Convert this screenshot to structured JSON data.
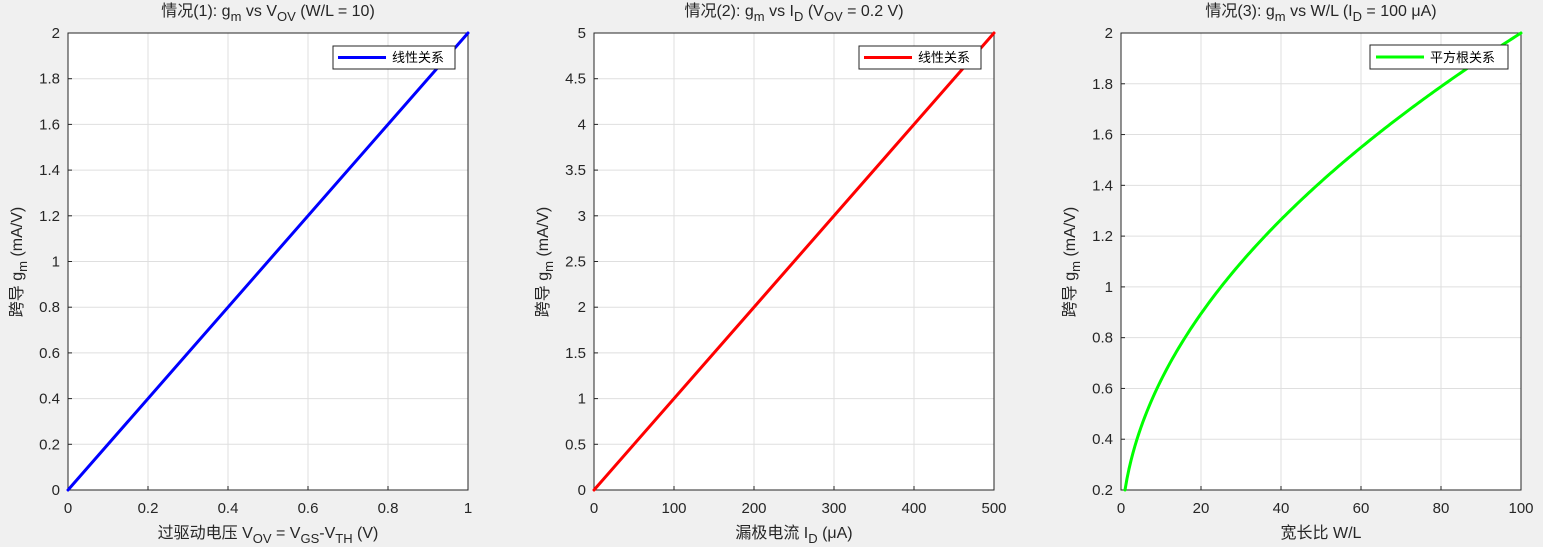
{
  "chart_data": [
    {
      "type": "line",
      "title": "情况(1): g_m vs V_OV (W/L = 10)",
      "xlabel": "过驱动电压 V_OV = V_GS-V_TH (V)",
      "ylabel": "跨导 g_m (mA/V)",
      "xlim": [
        0,
        1
      ],
      "ylim": [
        0,
        2
      ],
      "xticks": [
        0,
        0.2,
        0.4,
        0.6,
        0.8,
        1
      ],
      "yticks": [
        0,
        0.2,
        0.4,
        0.6,
        0.8,
        1,
        1.2,
        1.4,
        1.6,
        1.8,
        2
      ],
      "grid": true,
      "legend_position": "top-right",
      "series": [
        {
          "name": "线性关系",
          "color": "#0000ff",
          "x": [
            0,
            1
          ],
          "y": [
            0,
            2
          ]
        }
      ]
    },
    {
      "type": "line",
      "title": "情况(2): g_m vs I_D (V_OV = 0.2 V)",
      "xlabel": "漏极电流 I_D (μA)",
      "ylabel": "跨导 g_m (mA/V)",
      "xlim": [
        0,
        500
      ],
      "ylim": [
        0,
        5
      ],
      "xticks": [
        0,
        100,
        200,
        300,
        400,
        500
      ],
      "yticks": [
        0,
        0.5,
        1,
        1.5,
        2,
        2.5,
        3,
        3.5,
        4,
        4.5,
        5
      ],
      "grid": true,
      "legend_position": "top-right",
      "series": [
        {
          "name": "线性关系",
          "color": "#ff0000",
          "x": [
            0,
            500
          ],
          "y": [
            0,
            5
          ]
        }
      ]
    },
    {
      "type": "line",
      "title": "情况(3): g_m vs W/L (I_D = 100 μA)",
      "xlabel": "宽长比 W/L",
      "ylabel": "跨导 g_m (mA/V)",
      "xlim": [
        0,
        100
      ],
      "ylim": [
        0.2,
        2
      ],
      "xticks": [
        0,
        20,
        40,
        60,
        80,
        100
      ],
      "yticks": [
        0.2,
        0.4,
        0.6,
        0.8,
        1,
        1.2,
        1.4,
        1.6,
        1.8,
        2
      ],
      "grid": true,
      "legend_position": "top-right",
      "series": [
        {
          "name": "平方根关系",
          "color": "#00ff00",
          "x": [
            1,
            2,
            5,
            10,
            20,
            30,
            40,
            50,
            60,
            70,
            80,
            90,
            100
          ],
          "y": [
            0.2,
            0.283,
            0.447,
            0.632,
            0.894,
            1.095,
            1.265,
            1.414,
            1.549,
            1.673,
            1.789,
            1.897,
            2.0
          ]
        }
      ]
    }
  ]
}
